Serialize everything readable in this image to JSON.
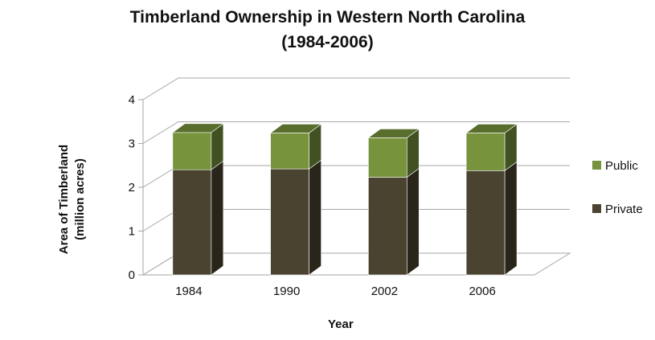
{
  "chart_data": {
    "type": "bar",
    "stacked": true,
    "three_d": true,
    "title": [
      "Timberland Ownership in Western North Carolina",
      "(1984-2006)"
    ],
    "xlabel": "Year",
    "ylabel": [
      "Area of Timberland",
      "(million acres)"
    ],
    "categories": [
      "1984",
      "1990",
      "2002",
      "2006"
    ],
    "series": [
      {
        "name": "Private",
        "values": [
          2.4,
          2.42,
          2.23,
          2.38
        ],
        "color": "#4a4330"
      },
      {
        "name": "Public",
        "values": [
          0.85,
          0.82,
          0.9,
          0.86
        ],
        "color": "#77933c"
      }
    ],
    "ylim": [
      0,
      4
    ],
    "yticks": [
      "0",
      "1",
      "2",
      "3",
      "4"
    ],
    "grid": true,
    "legend_position": "right"
  }
}
